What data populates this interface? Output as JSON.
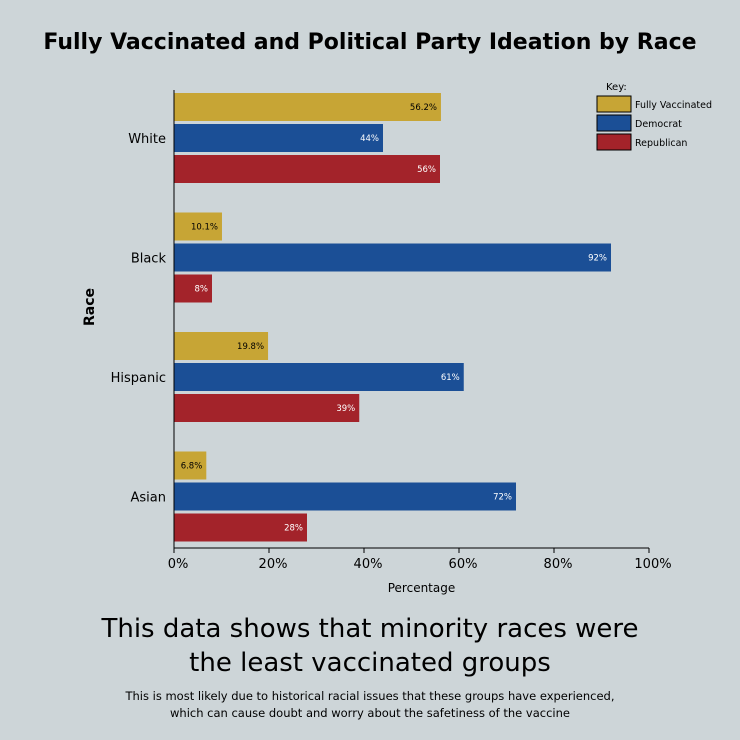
{
  "title": "Fully Vaccinated and Political Party Ideation by Race",
  "headline": {
    "line1": "This data shows that minority races were",
    "line2": "the least vaccinated groups"
  },
  "note": {
    "line1": "This is most likely due to historical racial issues that these groups have experienced,",
    "line2": "which can cause doubt and worry about the safetiness of the vaccine"
  },
  "colors": {
    "fully_vaccinated": "#c7a535",
    "democrat": "#1b4f96",
    "republican": "#a3232a",
    "background": "#cdd5d8"
  },
  "chart_data": {
    "type": "bar",
    "orientation": "horizontal",
    "title": "Fully Vaccinated and Political Party Ideation by Race",
    "xlabel": "Percentage",
    "ylabel": "Race",
    "xlim": [
      0,
      100
    ],
    "x_ticks": [
      "0%",
      "20%",
      "40%",
      "60%",
      "80%",
      "100%"
    ],
    "categories": [
      "White",
      "Black",
      "Hispanic",
      "Asian"
    ],
    "legend": {
      "title": "Key:",
      "position": "top-right"
    },
    "series": [
      {
        "name": "Fully Vaccinated",
        "color": "#c7a535",
        "values": [
          56.2,
          10.1,
          19.8,
          6.8
        ],
        "labels": [
          "56.2%",
          "10.1%",
          "19.8%",
          "6.8%"
        ],
        "label_color": "#000000"
      },
      {
        "name": "Democrat",
        "color": "#1b4f96",
        "values": [
          44,
          92,
          61,
          72
        ],
        "labels": [
          "44%",
          "92%",
          "61%",
          "72%"
        ],
        "label_color": "#ffffff"
      },
      {
        "name": "Republican",
        "color": "#a3232a",
        "values": [
          56,
          8,
          39,
          28
        ],
        "labels": [
          "56%",
          "8%",
          "39%",
          "28%"
        ],
        "label_color": "#ffffff"
      }
    ],
    "grid": false
  }
}
